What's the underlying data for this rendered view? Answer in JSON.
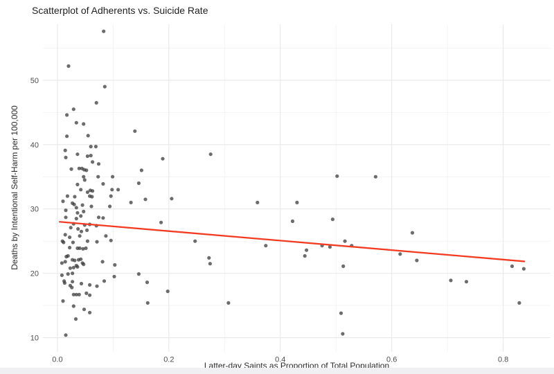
{
  "chart_data": {
    "type": "scatter",
    "title": "Scatterplot of Adherents vs. Suicide Rate",
    "xlabel": "Latter-day Saints as Proportion of Total Population",
    "ylabel": "Deaths by Intentional Self-Harm per 100,000",
    "legend": "none",
    "grid": true,
    "x_ticks": [
      "0.0",
      "0.2",
      "0.4",
      "0.6",
      "0.8"
    ],
    "x_tick_values": [
      0.0,
      0.2,
      0.4,
      0.6,
      0.8
    ],
    "x_minor_gridlines": [
      0.1,
      0.3,
      0.5,
      0.7
    ],
    "y_ticks": [
      "10",
      "20",
      "30",
      "40",
      "50"
    ],
    "y_tick_values": [
      10,
      20,
      30,
      40,
      50
    ],
    "y_minor_gridlines": [
      15,
      25,
      35,
      45,
      55
    ],
    "xlim": [
      -0.026,
      0.885
    ],
    "ylim": [
      7.8,
      58.7
    ],
    "colors": {
      "background": "#ffffff",
      "point": "#333333",
      "trend": "#f43b22",
      "grid_major": "#e8e8e8",
      "grid_minor": "#f2f2f2",
      "tick_label": "#4d4d4d",
      "axis_title": "#2b2b2b",
      "title": "#1f1f1f"
    },
    "point_radius": 2.6,
    "point_opacity": 0.72,
    "trend_line": {
      "shape": "linear",
      "x1": 0.004,
      "y1": 28.0,
      "x2": 0.838,
      "y2": 21.85,
      "width": 2.3
    },
    "points": [
      [
        0.083,
        57.6
      ],
      [
        0.02,
        52.2
      ],
      [
        0.085,
        49.0
      ],
      [
        0.07,
        46.5
      ],
      [
        0.029,
        45.5
      ],
      [
        0.017,
        44.6
      ],
      [
        0.034,
        43.4
      ],
      [
        0.047,
        43.2
      ],
      [
        0.139,
        42.1
      ],
      [
        0.017,
        41.3
      ],
      [
        0.055,
        41.4
      ],
      [
        0.06,
        39.7
      ],
      [
        0.069,
        39.7
      ],
      [
        0.014,
        39.1
      ],
      [
        0.036,
        38.5
      ],
      [
        0.054,
        38.2
      ],
      [
        0.06,
        38.3
      ],
      [
        0.015,
        38.0
      ],
      [
        0.189,
        37.8
      ],
      [
        0.275,
        38.5
      ],
      [
        0.063,
        37.3
      ],
      [
        0.074,
        37.0
      ],
      [
        0.025,
        36.2
      ],
      [
        0.039,
        36.3
      ],
      [
        0.044,
        36.3
      ],
      [
        0.048,
        36.1
      ],
      [
        0.052,
        36.0
      ],
      [
        0.151,
        36.0
      ],
      [
        0.073,
        35.0
      ],
      [
        0.047,
        35.0
      ],
      [
        0.049,
        34.5
      ],
      [
        0.099,
        35.0
      ],
      [
        0.146,
        34.0
      ],
      [
        0.082,
        33.9
      ],
      [
        0.036,
        33.8
      ],
      [
        0.502,
        35.1
      ],
      [
        0.571,
        35.0
      ],
      [
        0.042,
        33.0
      ],
      [
        0.059,
        32.9
      ],
      [
        0.063,
        32.8
      ],
      [
        0.054,
        32.6
      ],
      [
        0.058,
        32.0
      ],
      [
        0.062,
        31.9
      ],
      [
        0.018,
        32.0
      ],
      [
        0.031,
        31.9
      ],
      [
        0.098,
        33.0
      ],
      [
        0.109,
        33.0
      ],
      [
        0.096,
        32.0
      ],
      [
        0.132,
        31.0
      ],
      [
        0.01,
        31.2
      ],
      [
        0.158,
        31.5
      ],
      [
        0.205,
        31.6
      ],
      [
        0.359,
        31.0
      ],
      [
        0.43,
        31.0
      ],
      [
        0.027,
        30.9
      ],
      [
        0.03,
        30.7
      ],
      [
        0.045,
        30.6
      ],
      [
        0.061,
        30.4
      ],
      [
        0.094,
        30.4
      ],
      [
        0.034,
        30.2
      ],
      [
        0.015,
        29.8
      ],
      [
        0.036,
        29.4
      ],
      [
        0.047,
        29.6
      ],
      [
        0.042,
        28.9
      ],
      [
        0.015,
        28.7
      ],
      [
        0.034,
        28.5
      ],
      [
        0.074,
        28.7
      ],
      [
        0.082,
        28.6
      ],
      [
        0.186,
        27.9
      ],
      [
        0.422,
        28.1
      ],
      [
        0.494,
        28.4
      ],
      [
        0.029,
        27.7
      ],
      [
        0.049,
        27.5
      ],
      [
        0.058,
        27.6
      ],
      [
        0.07,
        27.4
      ],
      [
        0.024,
        27.1
      ],
      [
        0.037,
        26.9
      ],
      [
        0.637,
        26.3
      ],
      [
        0.043,
        26.5
      ],
      [
        0.053,
        26.7
      ],
      [
        0.014,
        26.0
      ],
      [
        0.022,
        25.6
      ],
      [
        0.04,
        25.8
      ],
      [
        0.087,
        25.8
      ],
      [
        0.009,
        25.0
      ],
      [
        0.011,
        24.8
      ],
      [
        0.028,
        24.8
      ],
      [
        0.054,
        25.0
      ],
      [
        0.071,
        24.9
      ],
      [
        0.096,
        25.1
      ],
      [
        0.247,
        25.0
      ],
      [
        0.516,
        25.0
      ],
      [
        0.374,
        24.3
      ],
      [
        0.475,
        24.3
      ],
      [
        0.489,
        24.1
      ],
      [
        0.528,
        24.3
      ],
      [
        0.447,
        23.6
      ],
      [
        0.444,
        22.7
      ],
      [
        0.615,
        23.0
      ],
      [
        0.022,
        24.0
      ],
      [
        0.036,
        23.9
      ],
      [
        0.04,
        23.9
      ],
      [
        0.046,
        23.8
      ],
      [
        0.051,
        23.9
      ],
      [
        0.016,
        22.6
      ],
      [
        0.019,
        22.7
      ],
      [
        0.027,
        22.1
      ],
      [
        0.008,
        21.6
      ],
      [
        0.014,
        21.8
      ],
      [
        0.031,
        22.0
      ],
      [
        0.038,
        22.1
      ],
      [
        0.042,
        22.2
      ],
      [
        0.045,
        21.6
      ],
      [
        0.047,
        21.4
      ],
      [
        0.034,
        21.2
      ],
      [
        0.023,
        20.8
      ],
      [
        0.029,
        20.9
      ],
      [
        0.036,
        21.0
      ],
      [
        0.081,
        21.8
      ],
      [
        0.103,
        21.3
      ],
      [
        0.272,
        22.4
      ],
      [
        0.274,
        21.5
      ],
      [
        0.645,
        22.0
      ],
      [
        0.816,
        21.1
      ],
      [
        0.837,
        20.7
      ],
      [
        0.513,
        21.1
      ],
      [
        0.008,
        19.7
      ],
      [
        0.027,
        20.0
      ],
      [
        0.019,
        19.9
      ],
      [
        0.146,
        19.9
      ],
      [
        0.102,
        19.5
      ],
      [
        0.084,
        18.8
      ],
      [
        0.012,
        18.8
      ],
      [
        0.013,
        18.5
      ],
      [
        0.027,
        18.7
      ],
      [
        0.023,
        18.1
      ],
      [
        0.026,
        17.8
      ],
      [
        0.043,
        18.4
      ],
      [
        0.058,
        18.2
      ],
      [
        0.071,
        18.0
      ],
      [
        0.161,
        18.6
      ],
      [
        0.706,
        18.9
      ],
      [
        0.734,
        18.7
      ],
      [
        0.029,
        16.7
      ],
      [
        0.034,
        16.7
      ],
      [
        0.039,
        16.7
      ],
      [
        0.052,
        16.9
      ],
      [
        0.058,
        16.6
      ],
      [
        0.01,
        15.7
      ],
      [
        0.198,
        17.2
      ],
      [
        0.162,
        15.4
      ],
      [
        0.307,
        15.4
      ],
      [
        0.829,
        15.4
      ],
      [
        0.029,
        14.9
      ],
      [
        0.048,
        14.4
      ],
      [
        0.058,
        13.9
      ],
      [
        0.509,
        13.8
      ],
      [
        0.033,
        12.9
      ],
      [
        0.015,
        10.4
      ],
      [
        0.512,
        10.6
      ]
    ]
  }
}
